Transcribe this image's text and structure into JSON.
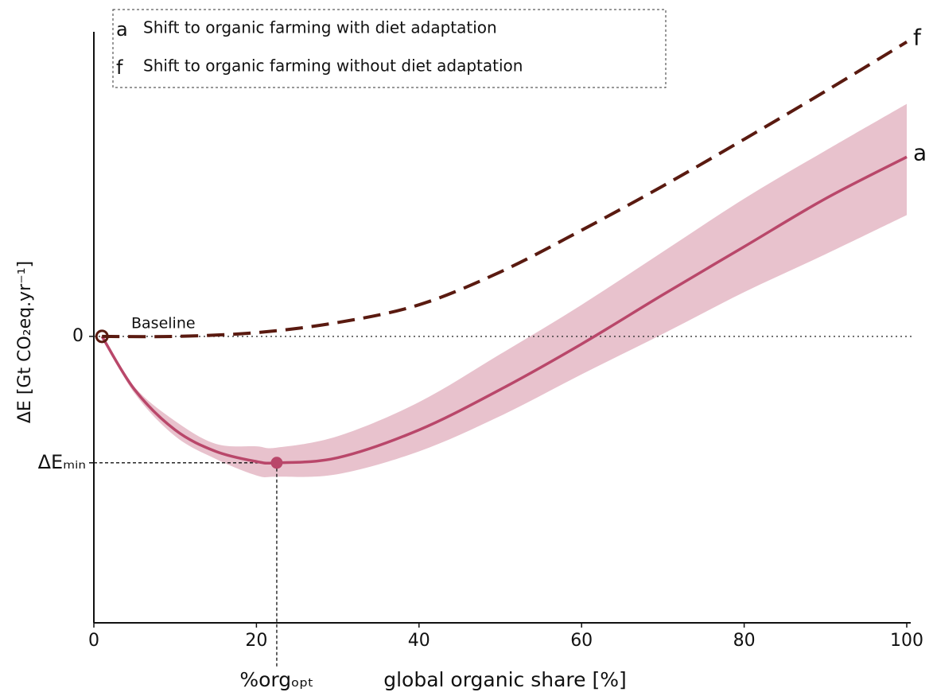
{
  "chart_data": {
    "type": "line",
    "y_label": "ΔE [Gt CO₂eq.yr⁻¹]",
    "x_label": "global organic share [%]",
    "baseline_label": "Baseline",
    "optimum_label": "%orgₒₚₜ",
    "xlim": [
      0,
      100
    ],
    "xticks": [
      0,
      20,
      40,
      60,
      80,
      100
    ],
    "ylim": [
      -2.26,
      2.41
    ],
    "yticks": [
      0,
      {
        "value": -1,
        "label": "ΔEₘᵢₙ"
      }
    ],
    "legend": "top-left",
    "series": [
      {
        "key": "a",
        "name": "Shift to organic farming with diet adaptation",
        "color": "#b9476a",
        "band_color": "#e8c2cd",
        "dashed": false,
        "x": [
          1,
          5,
          10,
          15,
          20,
          22.5,
          30,
          40,
          50,
          60,
          70,
          80,
          90,
          100
        ],
        "values": [
          0,
          -0.42,
          -0.74,
          -0.91,
          -0.99,
          -1,
          -0.96,
          -0.74,
          -0.42,
          -0.06,
          0.33,
          0.71,
          1.09,
          1.42
        ],
        "lower": [
          0,
          -0.45,
          -0.79,
          -0.97,
          -1.1,
          -1.11,
          -1.09,
          -0.91,
          -0.63,
          -0.3,
          0.02,
          0.35,
          0.65,
          0.96
        ],
        "upper": [
          0,
          -0.4,
          -0.67,
          -0.85,
          -0.87,
          -0.88,
          -0.79,
          -0.52,
          -0.14,
          0.25,
          0.67,
          1.09,
          1.47,
          1.84
        ]
      },
      {
        "key": "f",
        "name": "Shift to organic farming without diet adaptation",
        "color": "#5a1a10",
        "dashed": true,
        "x": [
          1,
          10,
          20,
          30,
          40,
          50,
          60,
          70,
          80,
          90,
          100
        ],
        "values": [
          0,
          0,
          0.03,
          0.11,
          0.25,
          0.51,
          0.84,
          1.19,
          1.56,
          1.94,
          2.33
        ]
      }
    ],
    "points": [
      {
        "x": 1,
        "y": 0,
        "color": "#5a1a10",
        "hollow": true
      },
      {
        "x": 22.5,
        "y": -1,
        "color": "#b9476a",
        "hollow": false
      }
    ]
  }
}
